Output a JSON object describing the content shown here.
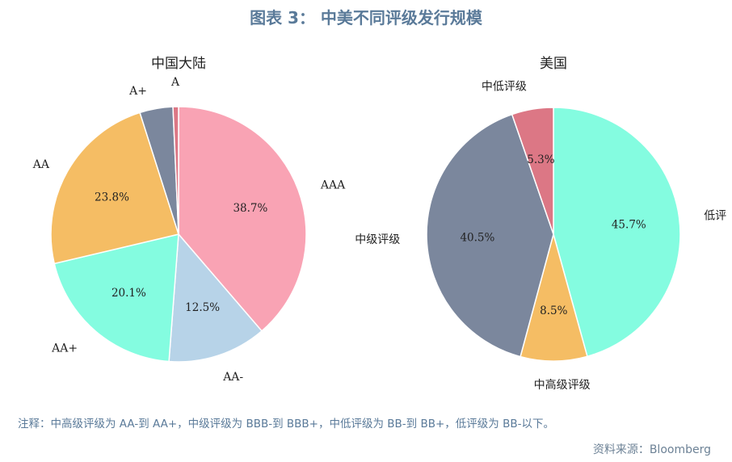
{
  "figure_title": "图表 3： 中美不同评级发行规模",
  "note": "注释：中高级评级为 AA-到 AA+，中级评级为 BBB-到 BBB+，中低评级为 BB-到 BB+，低评级为 BB-以下。",
  "source": "资料来源：Bloomberg",
  "chart_data": [
    {
      "type": "pie",
      "title": "中国大陆",
      "start_angle_deg": 90,
      "direction": "clockwise",
      "slices": [
        {
          "label": "AAA",
          "value": 38.7,
          "pct_label": "38.7%",
          "color": "#f9a3b4"
        },
        {
          "label": "AA-",
          "value": 12.5,
          "pct_label": "12.5%",
          "color": "#b7d3e8"
        },
        {
          "label": "AA+",
          "value": 20.1,
          "pct_label": "20.1%",
          "color": "#84fce0"
        },
        {
          "label": "AA",
          "value": 23.8,
          "pct_label": "23.8%",
          "color": "#f5bd64"
        },
        {
          "label": "A+",
          "value": 4.2,
          "pct_label": "",
          "color": "#7b879d"
        },
        {
          "label": "A",
          "value": 0.7,
          "pct_label": "",
          "color": "#dc7785"
        }
      ]
    },
    {
      "type": "pie",
      "title": "美国",
      "start_angle_deg": 90,
      "direction": "clockwise",
      "slices": [
        {
          "label": "低评",
          "value": 45.7,
          "pct_label": "45.7%",
          "color": "#84fce0"
        },
        {
          "label": "中高级评级",
          "value": 8.5,
          "pct_label": "8.5%",
          "color": "#f5bd64"
        },
        {
          "label": "中级评级",
          "value": 40.5,
          "pct_label": "40.5%",
          "color": "#7b879d"
        },
        {
          "label": "中低评级",
          "value": 5.3,
          "pct_label": "5.3%",
          "color": "#dc7785"
        }
      ]
    }
  ]
}
